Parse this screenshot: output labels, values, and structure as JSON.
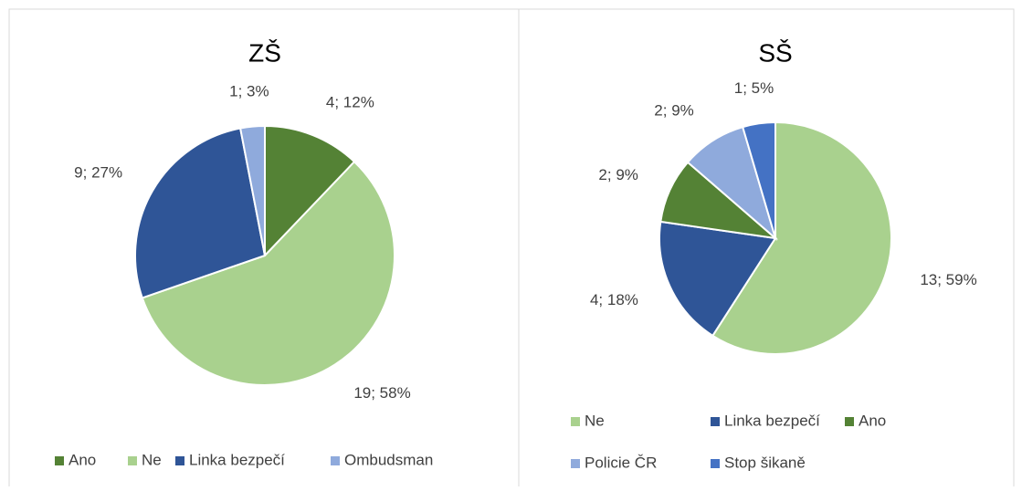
{
  "chart_data": [
    {
      "type": "pie",
      "title": "ZŠ",
      "categories": [
        "Ano",
        "Ne",
        "Linka bezpečí",
        "Ombudsman"
      ],
      "values": [
        4,
        19,
        9,
        1
      ],
      "value_labels": [
        "4; 12%",
        "19; 58%",
        "9; 27%",
        "1; 3%"
      ],
      "colors": [
        "#548235",
        "#a9d18e",
        "#2f5597",
        "#8faadc"
      ]
    },
    {
      "type": "pie",
      "title": "SŠ",
      "categories": [
        "Ne",
        "Linka bezpečí",
        "Ano",
        "Policie ČR",
        "Stop šikaně"
      ],
      "values": [
        13,
        4,
        2,
        2,
        1
      ],
      "value_labels": [
        "13; 59%",
        "4; 18%",
        "2; 9%",
        "2; 9%",
        "1; 5%"
      ],
      "colors": [
        "#a9d18e",
        "#2f5597",
        "#548235",
        "#8faadc",
        "#4472c4"
      ]
    }
  ]
}
